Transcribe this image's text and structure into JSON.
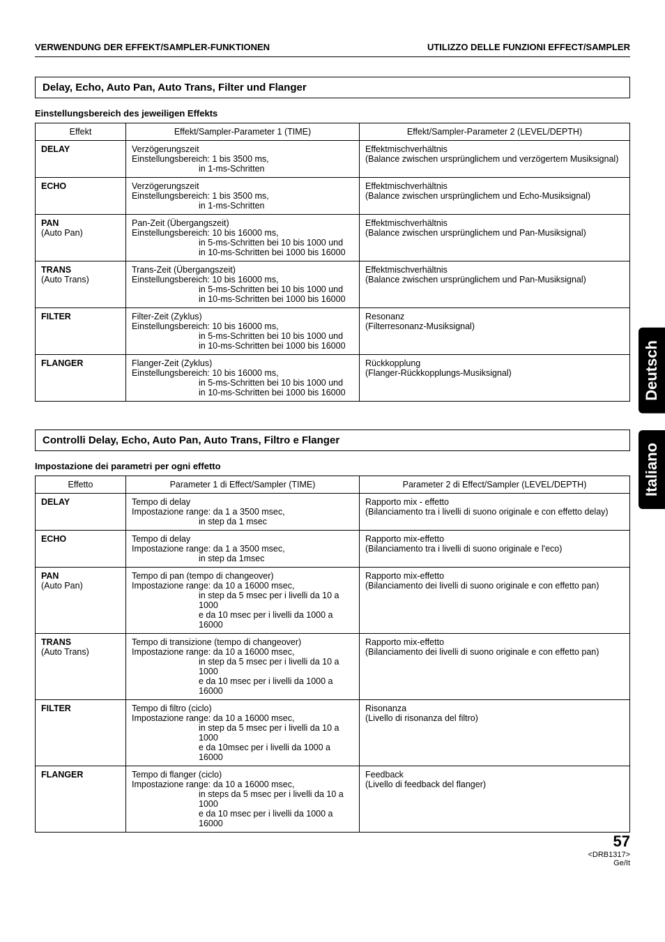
{
  "headers": {
    "left": "VERWENDUNG DER EFFEKT/SAMPLER-FUNKTIONEN",
    "right": "UTILIZZO DELLE FUNZIONI EFFECT/SAMPLER"
  },
  "german": {
    "section_title": "Delay, Echo, Auto Pan, Auto Trans, Filter und Flanger",
    "subheading": "Einstellungsbereich des jeweiligen Effekts",
    "columns": [
      "Effekt",
      "Effekt/Sampler-Parameter 1 (TIME)",
      "Effekt/Sampler-Parameter 2 (LEVEL/DEPTH)"
    ],
    "rows": [
      {
        "name": "DELAY",
        "alt": "",
        "p1_l1": "Verzögerungszeit",
        "p1_l2": "Einstellungsbereich: 1 bis 3500 ms,",
        "p1_l3": "in 1-ms-Schritten",
        "p1_l4": "",
        "p2_l1": "Effektmischverhältnis",
        "p2_l2": "(Balance zwischen ursprünglichem und verzögertem Musiksignal)"
      },
      {
        "name": "ECHO",
        "alt": "",
        "p1_l1": "Verzögerungszeit",
        "p1_l2": "Einstellungsbereich: 1 bis 3500 ms,",
        "p1_l3": "in 1-ms-Schritten",
        "p1_l4": "",
        "p2_l1": "Effektmischverhältnis",
        "p2_l2": "(Balance zwischen ursprünglichem und Echo-Musiksignal)"
      },
      {
        "name": "PAN",
        "alt": "(Auto Pan)",
        "p1_l1": "Pan-Zeit (Übergangszeit)",
        "p1_l2": "Einstellungsbereich: 10 bis 16000 ms,",
        "p1_l3": "in 5-ms-Schritten bei 10 bis 1000 und",
        "p1_l4": "in 10-ms-Schritten bei 1000 bis 16000",
        "p2_l1": "Effektmischverhältnis",
        "p2_l2": "(Balance zwischen ursprünglichem und Pan-Musiksignal)"
      },
      {
        "name": "TRANS",
        "alt": "(Auto Trans)",
        "p1_l1": "Trans-Zeit (Übergangszeit)",
        "p1_l2": "Einstellungsbereich: 10 bis 16000 ms,",
        "p1_l3": "in 5-ms-Schritten bei 10 bis 1000 und",
        "p1_l4": "in 10-ms-Schritten bei 1000 bis 16000",
        "p2_l1": "Effektmischverhältnis",
        "p2_l2": "(Balance zwischen ursprünglichem und Pan-Musiksignal)"
      },
      {
        "name": "FILTER",
        "alt": "",
        "p1_l1": "Filter-Zeit (Zyklus)",
        "p1_l2": "Einstellungsbereich: 10 bis 16000 ms,",
        "p1_l3": "in 5-ms-Schritten bei 10 bis 1000 und",
        "p1_l4": "in 10-ms-Schritten bei 1000 bis 16000",
        "p2_l1": "Resonanz",
        "p2_l2": "(Filterresonanz-Musiksignal)"
      },
      {
        "name": "FLANGER",
        "alt": "",
        "p1_l1": "Flanger-Zeit (Zyklus)",
        "p1_l2": "Einstellungsbereich: 10 bis 16000 ms,",
        "p1_l3": "in 5-ms-Schritten bei 10 bis 1000 und",
        "p1_l4": "in 10-ms-Schritten bei 1000 bis 16000",
        "p2_l1": "Rückkopplung",
        "p2_l2": "(Flanger-Rückkopplungs-Musiksignal)"
      }
    ]
  },
  "italian": {
    "section_title": "Controlli Delay, Echo, Auto Pan, Auto Trans, Filtro e Flanger",
    "subheading": "Impostazione dei parametri per ogni effetto",
    "columns": [
      "Effetto",
      "Parameter 1 di Effect/Sampler (TIME)",
      "Parameter 2 di Effect/Sampler (LEVEL/DEPTH)"
    ],
    "rows": [
      {
        "name": "DELAY",
        "alt": "",
        "p1_l1": "Tempo di delay",
        "p1_l2": "Impostazione range: da 1 a 3500 msec,",
        "p1_l3": "in step da 1 msec",
        "p1_l4": "",
        "p2_l1": "Rapporto mix - effetto",
        "p2_l2": "(Bilanciamento tra i livelli di suono originale e con effetto delay)"
      },
      {
        "name": "ECHO",
        "alt": "",
        "p1_l1": "Tempo di delay",
        "p1_l2": "Impostazione range: da 1 a 3500 msec,",
        "p1_l3": "in step da 1msec",
        "p1_l4": "",
        "p2_l1": "Rapporto mix-effetto",
        "p2_l2": "(Bilanciamento tra i livelli di suono originale e l'eco)"
      },
      {
        "name": "PAN",
        "alt": "(Auto Pan)",
        "p1_l1": "Tempo di pan (tempo di changeover)",
        "p1_l2": "Impostazione range: da 10 a 16000 msec,",
        "p1_l3": "in step da 5 msec per i livelli da 10 a 1000",
        "p1_l4": "e da 10 msec per i livelli da 1000 a 16000",
        "p2_l1": "Rapporto mix-effetto",
        "p2_l2": "(Bilanciamento dei livelli di suono originale e con effetto pan)"
      },
      {
        "name": "TRANS",
        "alt": "(Auto Trans)",
        "p1_l1": "Tempo di transizione (tempo di changeover)",
        "p1_l2": "Impostazione range: da 10 a 16000 msec,",
        "p1_l3": "in step da 5 msec per i livelli da 10 a 1000",
        "p1_l4": "e da 10 msec per i livelli da 1000 a 16000",
        "p2_l1": "Rapporto mix-effetto",
        "p2_l2": "(Bilanciamento dei livelli di suono originale e con effetto pan)"
      },
      {
        "name": "FILTER",
        "alt": "",
        "p1_l1": "Tempo di filtro (ciclo)",
        "p1_l2": "Impostazione range: da 10 a 16000 msec,",
        "p1_l3": "in step da 5 msec per i livelli da 10 a 1000",
        "p1_l4": "e da 10msec per i livelli da 1000 a 16000",
        "p2_l1": "Risonanza",
        "p2_l2": "(Livello di risonanza del filtro)"
      },
      {
        "name": "FLANGER",
        "alt": "",
        "p1_l1": "Tempo di flanger (ciclo)",
        "p1_l2": "Impostazione range: da 10 a 16000 msec,",
        "p1_l3": "in steps da 5 msec per i livelli da 10 a 1000",
        "p1_l4": "e da 10 msec per i livelli da 1000 a 16000",
        "p2_l1": "Feedback",
        "p2_l2": "(Livello di feedback del flanger)"
      }
    ]
  },
  "tabs": {
    "top": "Deutsch",
    "bottom": "Italiano"
  },
  "footer": {
    "page": "57",
    "code": "<DRB1317>",
    "langs": "Ge/It"
  }
}
